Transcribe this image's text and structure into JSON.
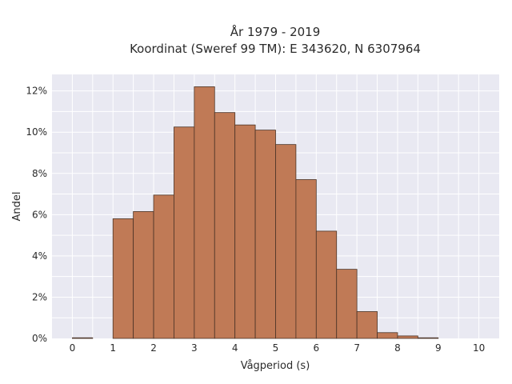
{
  "chart_data": {
    "type": "bar",
    "title_lines": [
      "År 1979 - 2019",
      "Koordinat (Sweref 99 TM): E 343620, N 6307964"
    ],
    "xlabel": "Vågperiod (s)",
    "ylabel": "Andel",
    "bin_width": 0.5,
    "x": [
      0,
      0.5,
      1,
      1.5,
      2,
      2.5,
      3,
      3.5,
      4,
      4.5,
      5,
      5.5,
      6,
      6.5,
      7,
      7.5,
      8,
      8.5,
      9,
      9.5
    ],
    "values": [
      0.03,
      0,
      5.8,
      6.15,
      6.95,
      10.25,
      12.2,
      10.95,
      10.35,
      10.1,
      9.4,
      7.7,
      5.2,
      3.35,
      1.3,
      0.28,
      0.12,
      0.03,
      0,
      0
    ],
    "xlim": [
      -0.5,
      10.5
    ],
    "ylim": [
      0,
      12.8
    ],
    "xticks": [
      0,
      1,
      2,
      3,
      4,
      5,
      6,
      7,
      8,
      9,
      10
    ],
    "yticks": [
      0,
      2,
      4,
      6,
      8,
      10,
      12
    ],
    "ytick_suffix": "%",
    "grid": true,
    "bar_color": "#c07a56",
    "bar_edge_color": "#4a3326",
    "plot_bg_color": "#e9e9f2"
  }
}
